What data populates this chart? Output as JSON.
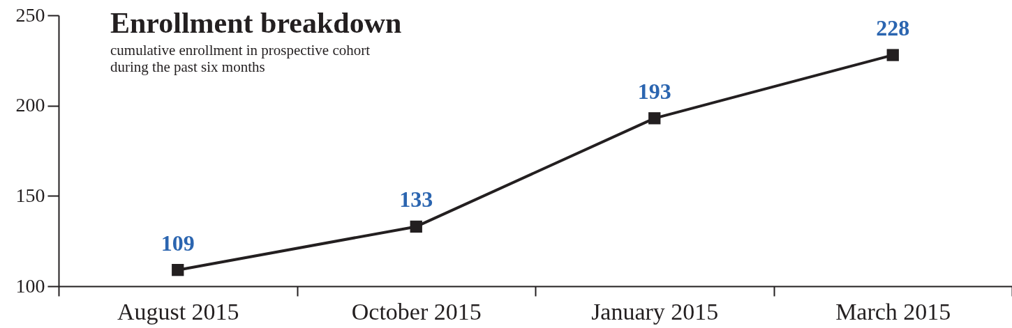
{
  "chart_data": {
    "type": "line",
    "title": "Enrollment breakdown",
    "subtitle": "cumulative enrollment in prospective cohort\nduring the past six months",
    "categories": [
      "August 2015",
      "October 2015",
      "January 2015",
      "March 2015"
    ],
    "series": [
      {
        "color": "#231f20",
        "values": [
          109,
          133,
          193,
          228
        ]
      }
    ],
    "ylim": [
      100,
      250
    ],
    "yticks": [
      100,
      150,
      200,
      250
    ],
    "grid": false,
    "legend": false,
    "marker": "square",
    "line_style": "solid",
    "data_labels": true
  }
}
